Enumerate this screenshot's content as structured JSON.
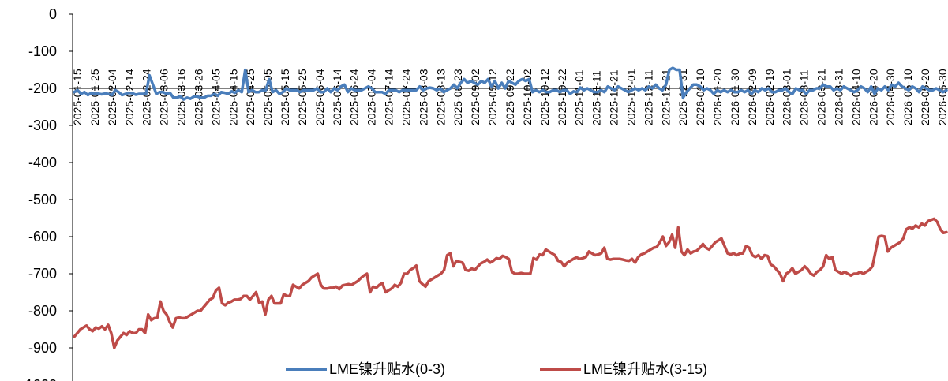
{
  "chart_data": {
    "type": "line",
    "title": "",
    "xlabel": "",
    "ylabel": "",
    "ylim": [
      -1000,
      0
    ],
    "ytick_step": 100,
    "grid": false,
    "legend_placement": "bottom-center",
    "x_tick_labels": [
      "2025-01-15",
      "2025-01-25",
      "2025-02-04",
      "2025-02-14",
      "2025-02-24",
      "2025-03-06",
      "2025-03-16",
      "2025-03-26",
      "2025-04-05",
      "2025-04-15",
      "2025-04-25",
      "2025-05-05",
      "2025-05-15",
      "2025-05-25",
      "2025-06-04",
      "2025-06-14",
      "2025-06-24",
      "2025-07-04",
      "2025-07-14",
      "2025-07-24",
      "2025-08-03",
      "2025-08-13",
      "2025-08-23",
      "2025-09-02",
      "2025-09-12",
      "2025-09-22",
      "2025-10-02",
      "2025-10-12",
      "2025-10-22",
      "2025-11-01",
      "2025-11-11",
      "2025-11-21",
      "2025-12-01",
      "2025-12-11",
      "2025-12-21",
      "2025-12-31",
      "2026-01-10",
      "2026-01-20",
      "2026-01-30",
      "2026-02-09",
      "2026-02-19",
      "2026-03-01",
      "2026-03-11",
      "2026-03-21",
      "2026-03-31",
      "2026-04-10",
      "2026-04-20",
      "2026-04-30",
      "2026-05-10",
      "2026-05-20",
      "2026-05-30"
    ],
    "series": [
      {
        "name": "LME镍升贴水(0-3)",
        "color": "#4a7ebb",
        "values": [
          -210,
          -205,
          -215,
          -210,
          -218,
          -212,
          -215,
          -214,
          -216,
          -214,
          -215,
          -218,
          -205,
          -210,
          -218,
          -215,
          -212,
          -213,
          -217,
          -215,
          -215,
          -215,
          -165,
          -190,
          -215,
          -210,
          -210,
          -215,
          -212,
          -225,
          -225,
          -222,
          -230,
          -225,
          -228,
          -222,
          -222,
          -225,
          -225,
          -220,
          -220,
          -215,
          -220,
          -210,
          -212,
          -215,
          -208,
          -212,
          -205,
          -210,
          -150,
          -210,
          -205,
          -210,
          -210,
          -205,
          -205,
          -175,
          -210,
          -205,
          -215,
          -210,
          -200,
          -205,
          -205,
          -205,
          -210,
          -205,
          -205,
          -205,
          -205,
          -200,
          -210,
          -210,
          -200,
          -210,
          -200,
          -205,
          -195,
          -190,
          -210,
          -200,
          -205,
          -205,
          -205,
          -200,
          -195,
          -200,
          -210,
          -210,
          -210,
          -215,
          -205,
          -205,
          -205,
          -210,
          -205,
          -205,
          -205,
          -205,
          -205,
          -195,
          -205,
          -200,
          -198,
          -200,
          -205,
          -200,
          -210,
          -205,
          -200,
          -190,
          -200,
          -185,
          -175,
          -185,
          -180,
          -185,
          -190,
          -180,
          -185,
          -175,
          -195,
          -180,
          -200,
          -185,
          -200,
          -180,
          -185,
          -190,
          -180,
          -175,
          -180,
          -175,
          -210,
          -205,
          -210,
          -205,
          -210,
          -210,
          -205,
          -205,
          -210,
          -205,
          -205,
          -215,
          -208,
          -210,
          -198,
          -205,
          -200,
          -205,
          -210,
          -210,
          -205,
          -210,
          -195,
          -200,
          -205,
          -195,
          -200,
          -205,
          -210,
          -205,
          -200,
          -205,
          -200,
          -205,
          -195,
          -200,
          -190,
          -200,
          -205,
          -190,
          -150,
          -145,
          -150,
          -150,
          -225,
          -210,
          -200,
          -190,
          -190,
          -195,
          -205,
          -200,
          -205,
          -215,
          -205,
          -210,
          -205,
          -210,
          -205,
          -210,
          -210,
          -205,
          -210,
          -205,
          -215,
          -205,
          -210,
          -200,
          -205,
          -200,
          -210,
          -210,
          -205,
          -205,
          -200,
          -210,
          -215,
          -200,
          -205,
          -205,
          -215,
          -205,
          -205,
          -200,
          -200,
          -190,
          -195,
          -195,
          -205,
          -200,
          -205,
          -195,
          -200,
          -205,
          -210,
          -205,
          -195,
          -200,
          -210,
          -195,
          -215,
          -200,
          -205,
          -195,
          -205,
          -190,
          -195,
          -185,
          -195,
          -200,
          -205,
          -195,
          -200,
          -210,
          -195,
          -200,
          -205,
          -205,
          -200,
          -205,
          -210,
          -205
        ]
      },
      {
        "name": "LME镍升贴水(3-15)",
        "color": "#be4b48",
        "values": [
          -870,
          -860,
          -850,
          -845,
          -840,
          -850,
          -855,
          -845,
          -848,
          -842,
          -850,
          -838,
          -860,
          -900,
          -880,
          -870,
          -860,
          -865,
          -855,
          -860,
          -860,
          -850,
          -850,
          -860,
          -810,
          -825,
          -820,
          -818,
          -775,
          -800,
          -810,
          -830,
          -845,
          -820,
          -818,
          -820,
          -820,
          -815,
          -810,
          -805,
          -800,
          -800,
          -790,
          -780,
          -770,
          -765,
          -745,
          -738,
          -780,
          -785,
          -778,
          -775,
          -770,
          -770,
          -768,
          -760,
          -760,
          -770,
          -760,
          -750,
          -778,
          -775,
          -810,
          -770,
          -760,
          -780,
          -780,
          -780,
          -755,
          -760,
          -760,
          -730,
          -735,
          -740,
          -730,
          -725,
          -720,
          -710,
          -705,
          -700,
          -730,
          -740,
          -740,
          -738,
          -738,
          -735,
          -742,
          -732,
          -730,
          -728,
          -730,
          -725,
          -720,
          -712,
          -705,
          -700,
          -750,
          -735,
          -738,
          -730,
          -725,
          -750,
          -745,
          -740,
          -730,
          -735,
          -725,
          -700,
          -700,
          -690,
          -685,
          -678,
          -720,
          -728,
          -735,
          -720,
          -715,
          -710,
          -705,
          -700,
          -690,
          -650,
          -645,
          -680,
          -665,
          -668,
          -670,
          -690,
          -692,
          -686,
          -690,
          -680,
          -672,
          -668,
          -662,
          -670,
          -665,
          -658,
          -660,
          -652,
          -655,
          -660,
          -695,
          -700,
          -700,
          -698,
          -700,
          -700,
          -700,
          -658,
          -662,
          -648,
          -650,
          -635,
          -640,
          -645,
          -650,
          -665,
          -668,
          -680,
          -670,
          -665,
          -660,
          -656,
          -660,
          -658,
          -655,
          -640,
          -645,
          -650,
          -648,
          -645,
          -630,
          -660,
          -662,
          -660,
          -660,
          -660,
          -662,
          -664,
          -665,
          -660,
          -670,
          -655,
          -648,
          -645,
          -640,
          -635,
          -630,
          -628,
          -615,
          -600,
          -625,
          -615,
          -595,
          -630,
          -575,
          -640,
          -650,
          -635,
          -645,
          -640,
          -638,
          -630,
          -620,
          -630,
          -635,
          -625,
          -615,
          -610,
          -605,
          -625,
          -645,
          -648,
          -645,
          -650,
          -645,
          -645,
          -625,
          -630,
          -650,
          -655,
          -650,
          -660,
          -650,
          -652,
          -675,
          -680,
          -690,
          -700,
          -720,
          -700,
          -695,
          -685,
          -700,
          -695,
          -690,
          -680,
          -688,
          -700,
          -705,
          -695,
          -690,
          -680,
          -650,
          -660,
          -655,
          -690,
          -695,
          -700,
          -695,
          -700,
          -705,
          -700,
          -700,
          -695,
          -700,
          -695,
          -690,
          -680,
          -640,
          -600,
          -598,
          -600,
          -640,
          -630,
          -625,
          -620,
          -615,
          -605,
          -580,
          -575,
          -578,
          -570,
          -575,
          -565,
          -570,
          -558,
          -555,
          -552,
          -560,
          -580,
          -590,
          -588
        ]
      }
    ]
  }
}
